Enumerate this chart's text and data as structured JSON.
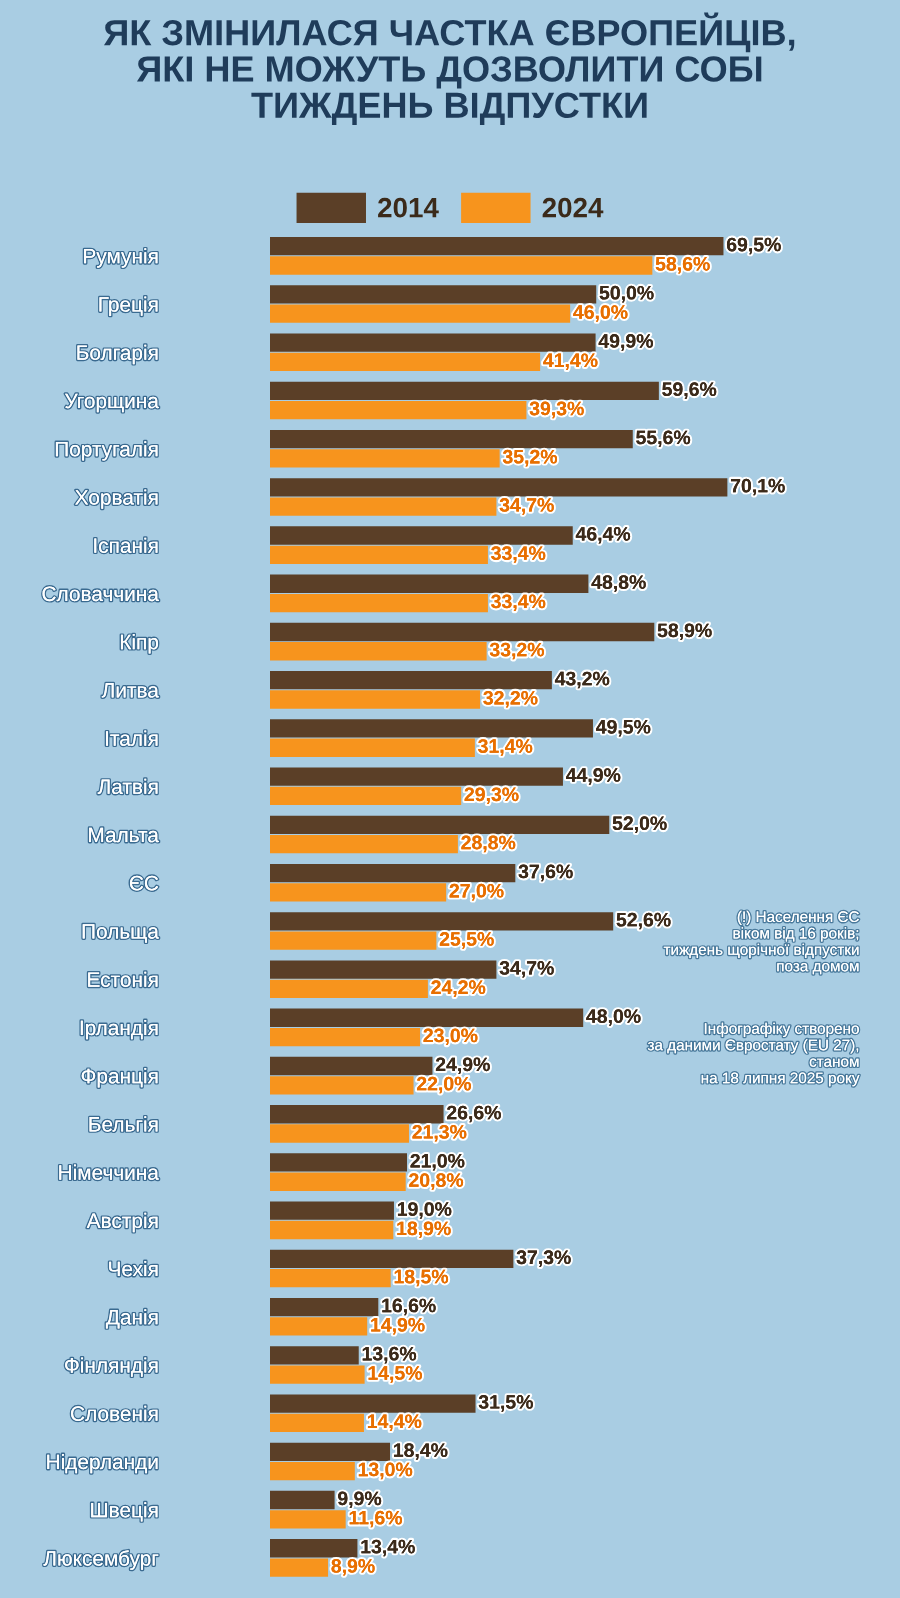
{
  "chart_data": {
    "type": "bar",
    "orientation": "horizontal",
    "title": "ЯК ЗМІНИЛАСЯ ЧАСТКА ЄВРОПЕЙЦІВ,\nЯКІ НЕ МОЖУТЬ ДОЗВОЛИТИ СОБІ\nТИЖДЕНЬ ВІДПУСТКИ",
    "categories": [
      "Румунія",
      "Греція",
      "Болгарія",
      "Угорщина",
      "Португалія",
      "Хорватія",
      "Іспанія",
      "Словаччина",
      "Кіпр",
      "Литва",
      "Італія",
      "Латвія",
      "Мальта",
      "ЄС",
      "Польща",
      "Естонія",
      "Ірландія",
      "Франція",
      "Бельгія",
      "Німеччина",
      "Австрія",
      "Чехія",
      "Данія",
      "Фінляндія",
      "Словенія",
      "Нідерланди",
      "Швеція",
      "Люксембург"
    ],
    "series": [
      {
        "name": "2014",
        "color": "#5b3f27",
        "values": [
          69.5,
          50.0,
          49.9,
          59.6,
          55.6,
          70.1,
          46.4,
          48.8,
          58.9,
          43.2,
          49.5,
          44.9,
          52.0,
          37.6,
          52.6,
          34.7,
          48.0,
          24.9,
          26.6,
          21.0,
          19.0,
          37.3,
          16.6,
          13.6,
          31.5,
          18.4,
          9.9,
          13.4
        ],
        "value_labels": [
          "69,5%",
          "50,0%",
          "49,9%",
          "59,6%",
          "55,6%",
          "70,1%",
          "46,4%",
          "48,8%",
          "58,9%",
          "43,2%",
          "49,5%",
          "44,9%",
          "52,0%",
          "37,6%",
          "52,6%",
          "34,7%",
          "48,0%",
          "24,9%",
          "26,6%",
          "21,0%",
          "19,0%",
          "37,3%",
          "16,6%",
          "13,6%",
          "31,5%",
          "18,4%",
          "9,9%",
          "13,4%"
        ]
      },
      {
        "name": "2024",
        "color": "#f7941d",
        "values": [
          58.6,
          46.0,
          41.4,
          39.3,
          35.2,
          34.7,
          33.4,
          33.4,
          33.2,
          32.2,
          31.4,
          29.3,
          28.8,
          27.0,
          25.5,
          24.2,
          23.0,
          22.0,
          21.3,
          20.8,
          18.9,
          18.5,
          14.9,
          14.5,
          14.4,
          13.0,
          11.6,
          8.9
        ],
        "value_labels": [
          "58,6%",
          "46,0%",
          "41,4%",
          "39,3%",
          "35,2%",
          "34,7%",
          "33,4%",
          "33,4%",
          "33,2%",
          "32,2%",
          "31,4%",
          "29,3%",
          "28,8%",
          "27,0%",
          "25,5%",
          "24,2%",
          "23,0%",
          "22,0%",
          "21,3%",
          "20,8%",
          "18,9%",
          "18,5%",
          "14,9%",
          "14,5%",
          "14,4%",
          "13,0%",
          "11,6%",
          "8,9%"
        ]
      }
    ],
    "legend": "top",
    "grid": false,
    "annotations": [
      "(!) Населення ЄС\nвіком від 16 років;\nтиждень щорічної відпустки\nпоза домом",
      "Інфографіку створено\nза даними Євростату (EU 27),\nстаном\nна 18 липня 2025 року"
    ]
  }
}
